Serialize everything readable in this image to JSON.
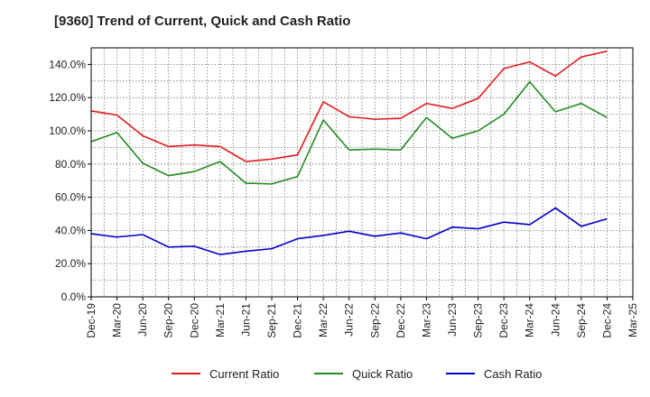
{
  "chart_data": {
    "type": "line",
    "title": "[9360]  Trend of Current, Quick and Cash Ratio",
    "xlabel": "",
    "ylabel": "",
    "ylim": [
      0,
      150
    ],
    "grid": true,
    "legend": "bottom",
    "categories": [
      "Dec-19",
      "Mar-20",
      "Jun-20",
      "Sep-20",
      "Dec-20",
      "Mar-21",
      "Jun-21",
      "Sep-21",
      "Dec-21",
      "Mar-22",
      "Jun-22",
      "Sep-22",
      "Dec-22",
      "Mar-23",
      "Jun-23",
      "Sep-23",
      "Dec-23",
      "Mar-24",
      "Jun-24",
      "Sep-24",
      "Dec-24",
      "Mar-25"
    ],
    "yticks": [
      0,
      20,
      40,
      60,
      80,
      100,
      120,
      140
    ],
    "ytick_labels": [
      "0.0%",
      "20.0%",
      "40.0%",
      "60.0%",
      "80.0%",
      "100.0%",
      "120.0%",
      "140.0%"
    ],
    "series": [
      {
        "name": "Current Ratio",
        "color": "#e31a1c",
        "values": [
          112.0,
          109.5,
          97.0,
          90.5,
          91.5,
          90.5,
          81.5,
          83.0,
          85.5,
          117.5,
          108.5,
          107.0,
          107.5,
          116.5,
          113.5,
          119.5,
          137.5,
          141.5,
          133.0,
          144.5,
          148.0,
          null
        ]
      },
      {
        "name": "Quick Ratio",
        "color": "#238b23",
        "values": [
          93.5,
          99.0,
          80.5,
          73.0,
          75.5,
          81.5,
          68.5,
          68.0,
          72.5,
          106.5,
          88.5,
          89.0,
          88.5,
          108.0,
          95.5,
          100.0,
          110.0,
          129.5,
          111.5,
          116.5,
          108.0,
          null
        ]
      },
      {
        "name": "Cash Ratio",
        "color": "#0000cc",
        "values": [
          38.0,
          36.0,
          37.5,
          30.0,
          30.5,
          25.5,
          27.5,
          29.0,
          35.0,
          37.0,
          39.5,
          36.5,
          38.5,
          35.0,
          42.0,
          41.0,
          45.0,
          43.5,
          53.5,
          42.5,
          47.0,
          null
        ]
      }
    ]
  }
}
